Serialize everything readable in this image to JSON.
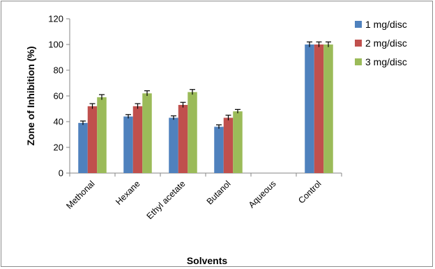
{
  "chart_data": {
    "type": "bar",
    "title": "",
    "xlabel": "Solvents",
    "ylabel": "Zone of Inhibition (%)",
    "ylim": [
      0,
      120
    ],
    "yticks": [
      0,
      20,
      40,
      60,
      80,
      100,
      120
    ],
    "categories": [
      "Methonal",
      "Hexane",
      "Ethyl acetate",
      "Butanol",
      "Aqueous",
      "Control"
    ],
    "series": [
      {
        "name": "1 mg/disc",
        "color": "#4f81bd",
        "values": [
          39,
          44,
          43,
          36,
          0,
          100
        ],
        "errors": [
          1.5,
          1.5,
          1.5,
          1.5,
          0,
          2
        ]
      },
      {
        "name": "2 mg/disc",
        "color": "#c0504d",
        "values": [
          52,
          52,
          53,
          43,
          0,
          100
        ],
        "errors": [
          2,
          2,
          2,
          2,
          0,
          2
        ]
      },
      {
        "name": "3 mg/disc",
        "color": "#9bbb59",
        "values": [
          59,
          62,
          63,
          48,
          0,
          100
        ],
        "errors": [
          2,
          2,
          2,
          1.5,
          0,
          2
        ]
      }
    ],
    "legend_position": "right",
    "grid": false
  }
}
